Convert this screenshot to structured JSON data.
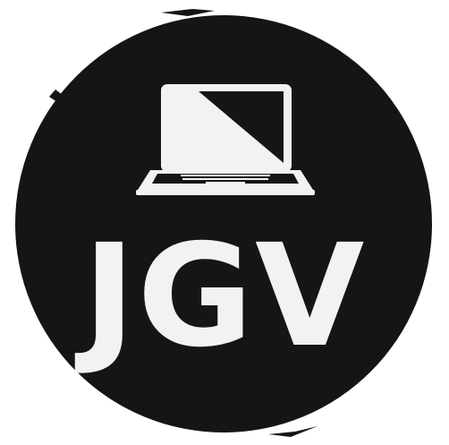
{
  "logo": {
    "text": "JGV",
    "icon": "laptop-icon",
    "colors": {
      "badge": "#151515",
      "foreground": "#f2f2f2",
      "background": "#ffffff"
    }
  }
}
